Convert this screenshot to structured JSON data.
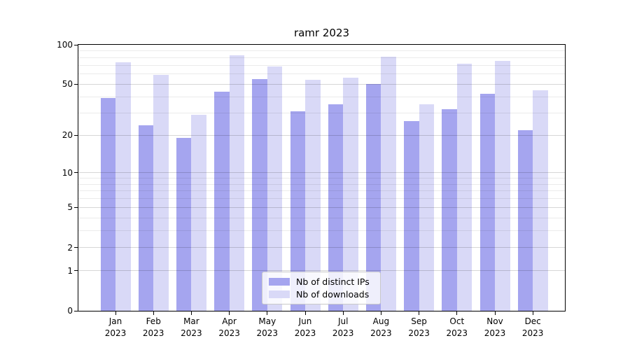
{
  "title": "ramr 2023",
  "chart_data": {
    "type": "bar",
    "title": "ramr 2023",
    "categories": [
      "Jan",
      "Feb",
      "Mar",
      "Apr",
      "May",
      "Jun",
      "Jul",
      "Aug",
      "Sep",
      "Oct",
      "Nov",
      "Dec"
    ],
    "category_year": "2023",
    "series": [
      {
        "name": "Nb of distinct IPs",
        "color": "#a5a5ef",
        "values": [
          39,
          24,
          19,
          44,
          55,
          31,
          35,
          50,
          26,
          32,
          42,
          22
        ]
      },
      {
        "name": "Nb of downloads",
        "color": "#d9d9f7",
        "values": [
          74,
          59,
          29,
          83,
          68,
          54,
          56,
          81,
          35,
          72,
          75,
          45
        ]
      }
    ],
    "yscale": "log(1+x)",
    "ylim": [
      0,
      100
    ],
    "y_major_ticks": [
      100,
      50,
      20,
      10,
      5,
      2,
      1,
      0
    ],
    "y_minor_gridlines": [
      3,
      4,
      6,
      7,
      8,
      9,
      30,
      40,
      60,
      70,
      80,
      90
    ],
    "grid": true,
    "legend_position": "lower center"
  },
  "colors": {
    "spine": "#000000",
    "background": "#ffffff",
    "major_grid": "rgba(0,0,0,0.16)",
    "minor_grid": "rgba(0,0,0,0.08)"
  }
}
